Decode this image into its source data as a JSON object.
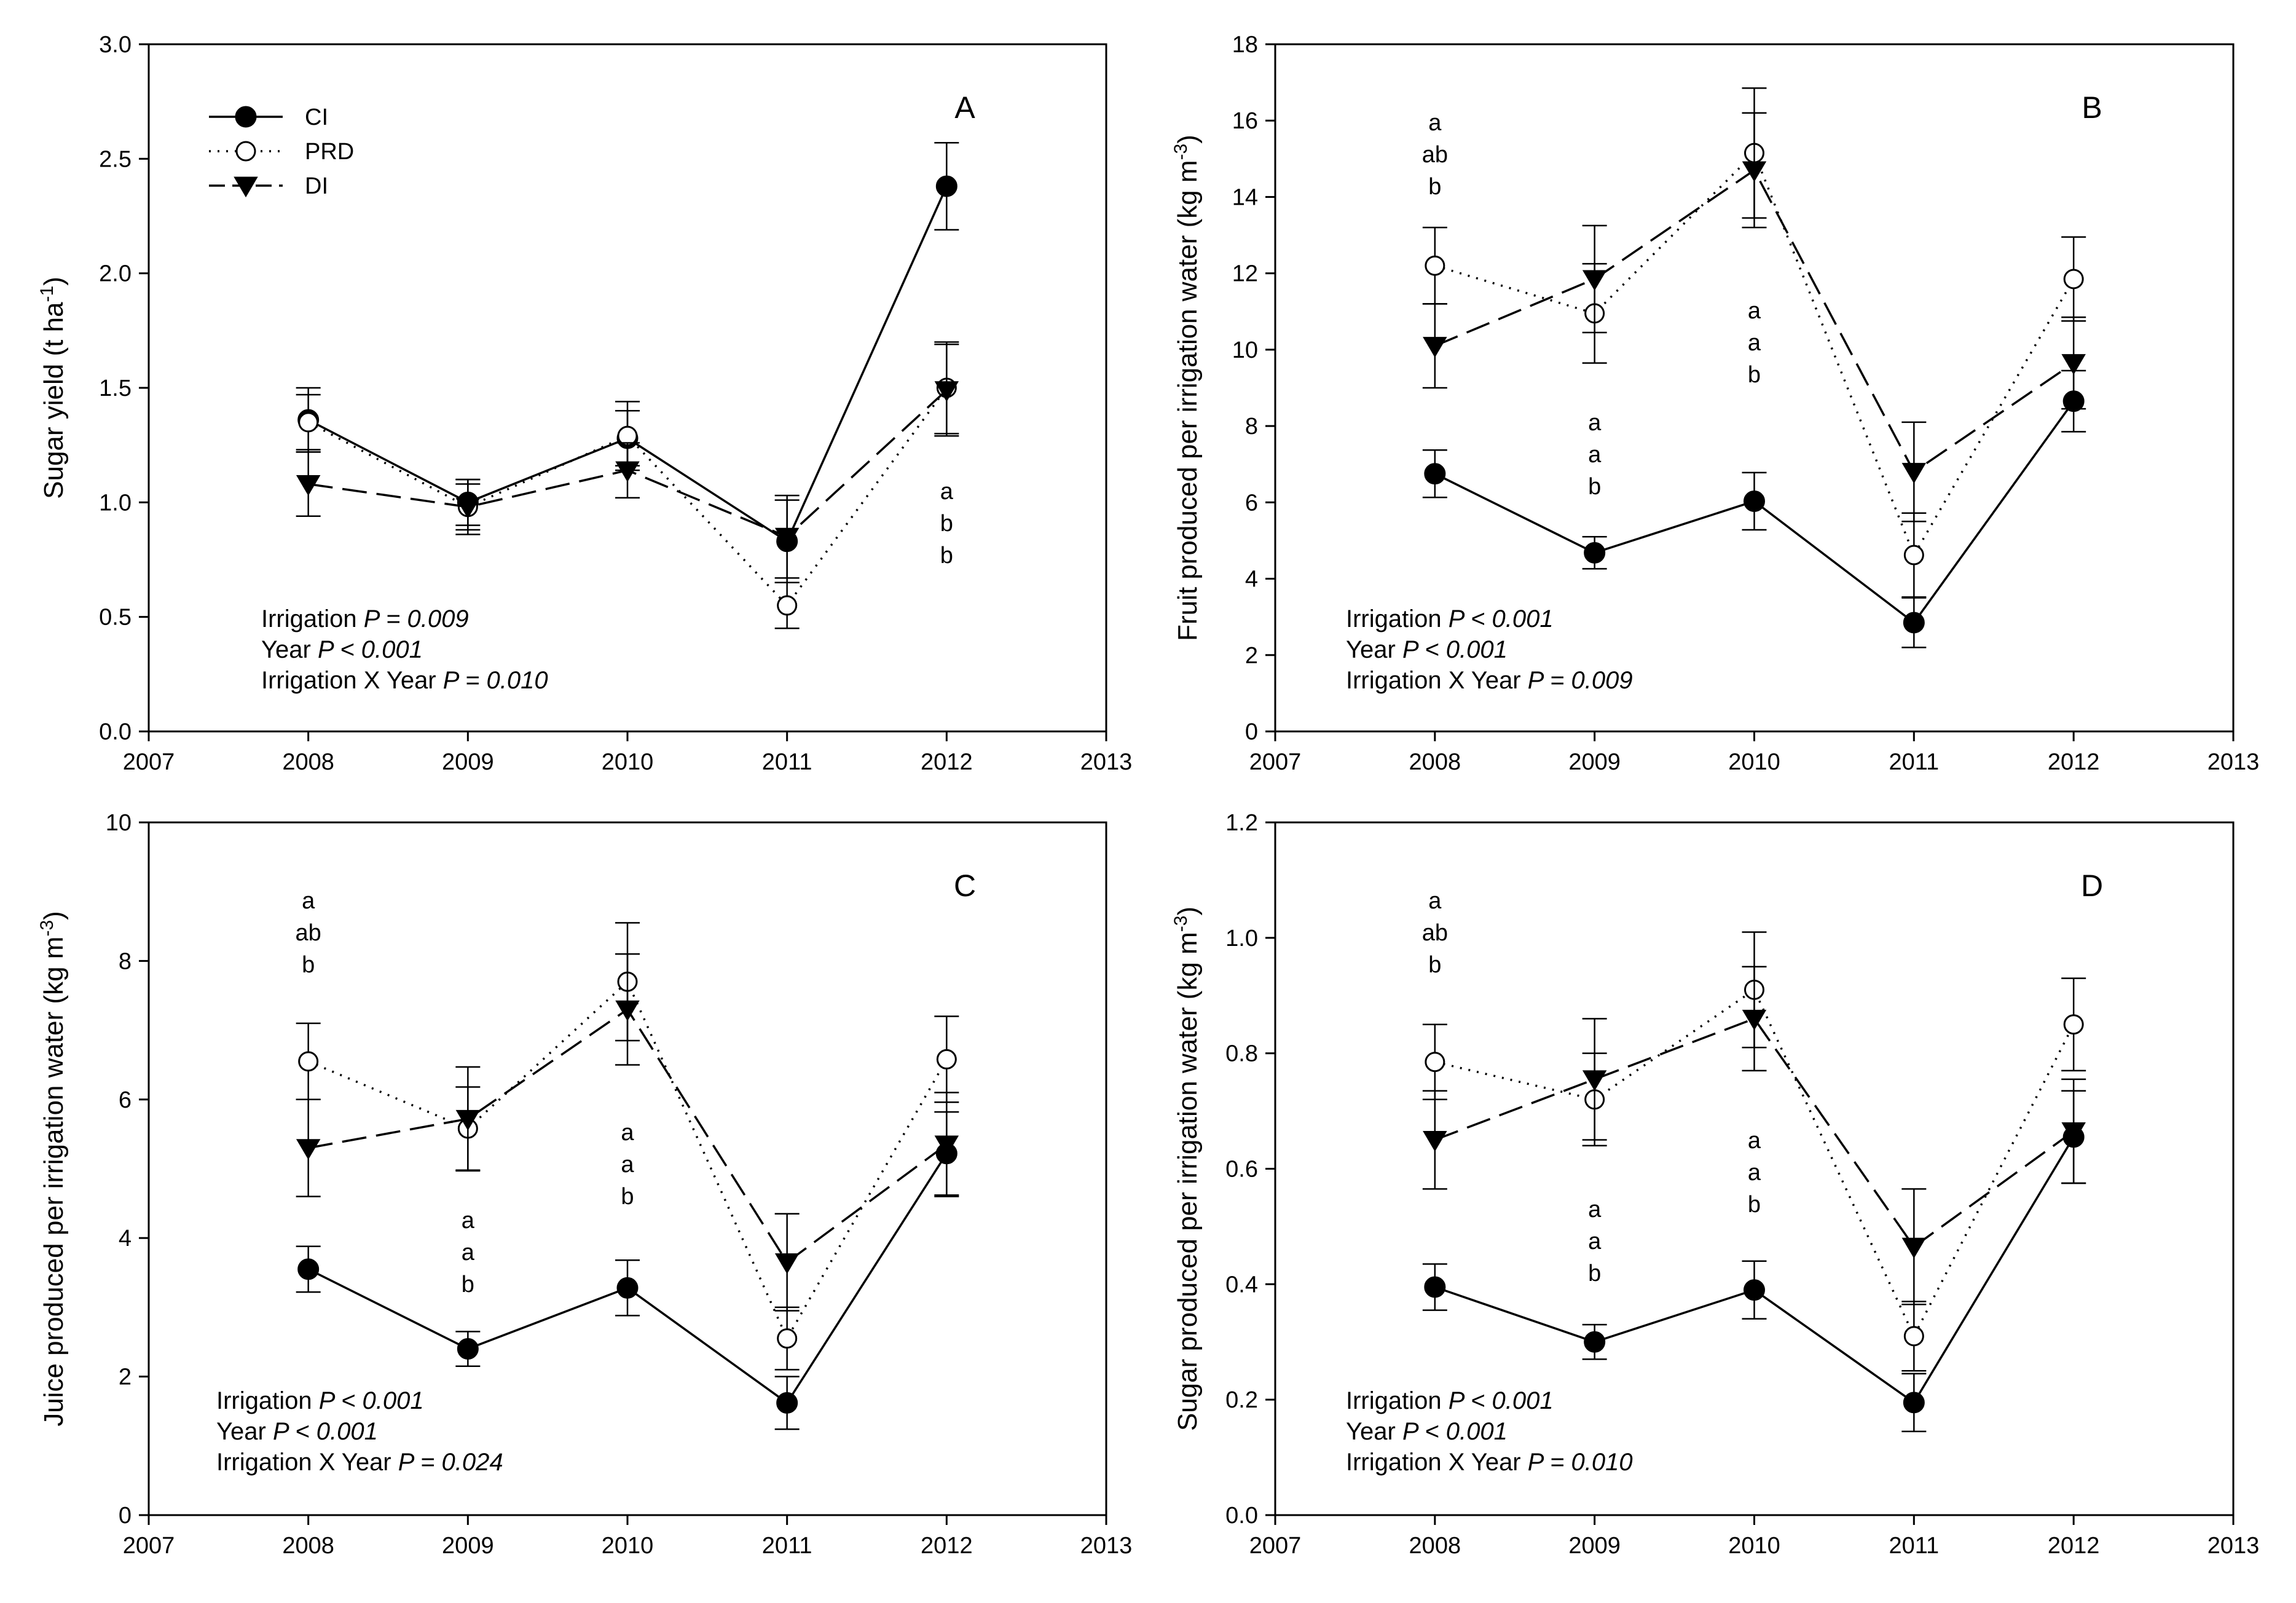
{
  "figure": {
    "background": "#ffffff",
    "line_color": "#000000",
    "marker_labels": {
      "CI": "filled-circle-icon",
      "PRD": "open-circle-icon",
      "DI": "filled-down-triangle-icon"
    }
  },
  "chart_data": [
    {
      "type": "line",
      "panel": "A",
      "title": "",
      "xlabel": "",
      "ylabel": "Sugar yield (t ha-1)",
      "ylabel_parts": {
        "base": "Sugar yield (t ha",
        "sup": "-1",
        "end": ")"
      },
      "xlim": [
        2007,
        2013
      ],
      "ylim": [
        0,
        3
      ],
      "xticks": [
        "2007",
        "2008",
        "2009",
        "2010",
        "2011",
        "2012",
        "2013"
      ],
      "yticks": [
        "0.0",
        "0.5",
        "1.0",
        "1.5",
        "2.0",
        "2.5",
        "3.0"
      ],
      "x": [
        2008,
        2009,
        2010,
        2011,
        2012
      ],
      "legend": {
        "location": "top-left",
        "entries": [
          "CI",
          "PRD",
          "DI"
        ]
      },
      "series": [
        {
          "name": "CI",
          "style": "solid",
          "marker": "filled-circle",
          "values": [
            1.36,
            1.0,
            1.28,
            0.83,
            2.38
          ],
          "errors": [
            0.14,
            0.1,
            0.12,
            0.18,
            0.19
          ]
        },
        {
          "name": "PRD",
          "style": "dotted",
          "marker": "open-circle",
          "values": [
            1.35,
            0.98,
            1.29,
            0.55,
            1.5
          ],
          "errors": [
            0.12,
            0.12,
            0.15,
            0.1,
            0.2
          ]
        },
        {
          "name": "DI",
          "style": "dashed",
          "marker": "filled-triangle-down",
          "values": [
            1.08,
            0.98,
            1.14,
            0.85,
            1.49
          ],
          "errors": [
            0.14,
            0.1,
            0.12,
            0.18,
            0.2
          ]
        }
      ],
      "annotations": [
        {
          "x": 2012,
          "letters": [
            "a",
            "b",
            "b"
          ]
        }
      ],
      "stats": [
        {
          "label": "Irrigation ",
          "value": "P = 0.009"
        },
        {
          "label": "Year ",
          "value": "P < 0.001"
        },
        {
          "label": "Irrigation X Year ",
          "value": "P = 0.010"
        }
      ]
    },
    {
      "type": "line",
      "panel": "B",
      "title": "",
      "xlabel": "",
      "ylabel": "Fruit produced per irrigation water (kg m-3)",
      "ylabel_parts": {
        "base": "Fruit produced per irrigation water (kg m",
        "sup": "-3",
        "end": ")"
      },
      "xlim": [
        2007,
        2013
      ],
      "ylim": [
        0,
        18
      ],
      "xticks": [
        "2007",
        "2008",
        "2009",
        "2010",
        "2011",
        "2012",
        "2013"
      ],
      "yticks": [
        "0",
        "2",
        "4",
        "6",
        "8",
        "10",
        "12",
        "14",
        "16",
        "18"
      ],
      "x": [
        2008,
        2009,
        2010,
        2011,
        2012
      ],
      "series": [
        {
          "name": "CI",
          "style": "solid",
          "marker": "filled-circle",
          "values": [
            6.75,
            4.68,
            6.03,
            2.85,
            8.65
          ],
          "errors": [
            0.62,
            0.42,
            0.75,
            0.65,
            0.8
          ]
        },
        {
          "name": "PRD",
          "style": "dotted",
          "marker": "open-circle",
          "values": [
            12.2,
            10.95,
            15.15,
            4.62,
            11.85
          ],
          "errors": [
            1.0,
            1.3,
            1.7,
            1.1,
            1.1
          ]
        },
        {
          "name": "DI",
          "style": "dashed",
          "marker": "filled-triangle-down",
          "values": [
            10.1,
            11.85,
            14.7,
            6.8,
            9.65
          ],
          "errors": [
            1.1,
            1.4,
            1.5,
            1.3,
            1.2
          ]
        }
      ],
      "annotations": [
        {
          "x": 2008,
          "letters": [
            "a",
            "ab",
            "b"
          ]
        },
        {
          "x": 2009,
          "letters": [
            "a",
            "a",
            "b"
          ]
        },
        {
          "x": 2010,
          "letters": [
            "a",
            "a",
            "b"
          ]
        }
      ],
      "stats": [
        {
          "label": "Irrigation ",
          "value": "P < 0.001"
        },
        {
          "label": "Year ",
          "value": "P < 0.001"
        },
        {
          "label": "Irrigation X Year ",
          "value": "P = 0.009"
        }
      ]
    },
    {
      "type": "line",
      "panel": "C",
      "title": "",
      "xlabel": "",
      "ylabel": "Juice produced per irrigation water (kg m-3)",
      "ylabel_parts": {
        "base": "Juice produced per irrigation water (kg m",
        "sup": "-3",
        "end": ")"
      },
      "xlim": [
        2007,
        2013
      ],
      "ylim": [
        0,
        10
      ],
      "xticks": [
        "2007",
        "2008",
        "2009",
        "2010",
        "2011",
        "2012",
        "2013"
      ],
      "yticks": [
        "0",
        "2",
        "4",
        "6",
        "8",
        "10"
      ],
      "x": [
        2008,
        2009,
        2010,
        2011,
        2012
      ],
      "series": [
        {
          "name": "CI",
          "style": "solid",
          "marker": "filled-circle",
          "values": [
            3.55,
            2.4,
            3.28,
            1.62,
            5.22
          ],
          "errors": [
            0.33,
            0.25,
            0.4,
            0.38,
            0.6
          ]
        },
        {
          "name": "PRD",
          "style": "dotted",
          "marker": "open-circle",
          "values": [
            6.55,
            5.58,
            7.7,
            2.55,
            6.58
          ],
          "errors": [
            0.55,
            0.6,
            0.85,
            0.45,
            0.62
          ]
        },
        {
          "name": "DI",
          "style": "dashed",
          "marker": "filled-triangle-down",
          "values": [
            5.3,
            5.72,
            7.3,
            3.65,
            5.35
          ],
          "errors": [
            0.7,
            0.75,
            0.8,
            0.7,
            0.75
          ]
        }
      ],
      "annotations": [
        {
          "x": 2008,
          "letters": [
            "a",
            "ab",
            "b"
          ]
        },
        {
          "x": 2009,
          "letters": [
            "a",
            "a",
            "b"
          ]
        },
        {
          "x": 2010,
          "letters": [
            "a",
            "a",
            "b"
          ]
        }
      ],
      "stats": [
        {
          "label": "Irrigation ",
          "value": "P < 0.001"
        },
        {
          "label": "Year ",
          "value": "P < 0.001"
        },
        {
          "label": "Irrigation X Year ",
          "value": "P = 0.024"
        }
      ]
    },
    {
      "type": "line",
      "panel": "D",
      "title": "",
      "xlabel": "",
      "ylabel": "Sugar produced per irrigation water (kg m-3)",
      "ylabel_parts": {
        "base": "Sugar produced per irrigation water (kg m",
        "sup": "-3",
        "end": ")"
      },
      "xlim": [
        2007,
        2013
      ],
      "ylim": [
        0,
        1.2
      ],
      "xticks": [
        "2007",
        "2008",
        "2009",
        "2010",
        "2011",
        "2012",
        "2013"
      ],
      "yticks": [
        "0.0",
        "0.2",
        "0.4",
        "0.6",
        "0.8",
        "1.0",
        "1.2"
      ],
      "x": [
        2008,
        2009,
        2010,
        2011,
        2012
      ],
      "series": [
        {
          "name": "CI",
          "style": "solid",
          "marker": "filled-circle",
          "values": [
            0.395,
            0.3,
            0.39,
            0.195,
            0.655
          ],
          "errors": [
            0.04,
            0.03,
            0.05,
            0.05,
            0.08
          ]
        },
        {
          "name": "PRD",
          "style": "dotted",
          "marker": "open-circle",
          "values": [
            0.785,
            0.72,
            0.91,
            0.31,
            0.85
          ],
          "errors": [
            0.065,
            0.08,
            0.1,
            0.06,
            0.08
          ]
        },
        {
          "name": "DI",
          "style": "dashed",
          "marker": "filled-triangle-down",
          "values": [
            0.65,
            0.755,
            0.86,
            0.465,
            0.665
          ],
          "errors": [
            0.085,
            0.105,
            0.09,
            0.1,
            0.09
          ]
        }
      ],
      "annotations": [
        {
          "x": 2008,
          "letters": [
            "a",
            "ab",
            "b"
          ]
        },
        {
          "x": 2009,
          "letters": [
            "a",
            "a",
            "b"
          ]
        },
        {
          "x": 2010,
          "letters": [
            "a",
            "a",
            "b"
          ]
        }
      ],
      "stats": [
        {
          "label": "Irrigation ",
          "value": "P < 0.001"
        },
        {
          "label": "Year ",
          "value": "P < 0.001"
        },
        {
          "label": "Irrigation X Year ",
          "value": "P = 0.010"
        }
      ]
    }
  ]
}
